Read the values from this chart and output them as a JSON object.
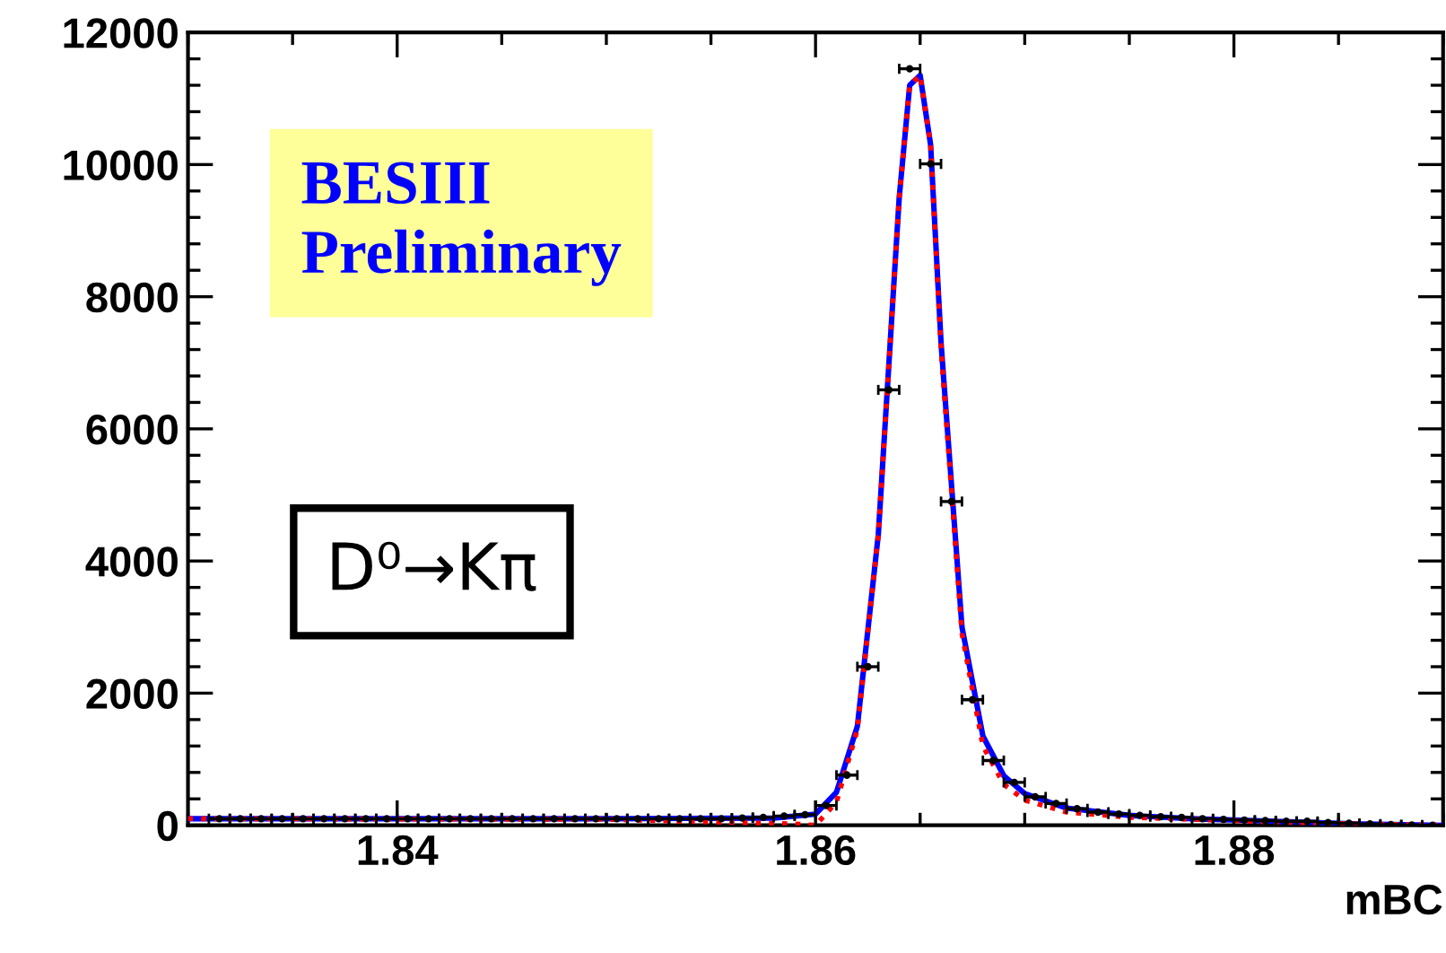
{
  "chart_data": {
    "type": "scatter",
    "xlabel": "mBC",
    "xlim": [
      1.83,
      1.89
    ],
    "xticks": [
      1.84,
      1.86,
      1.88
    ],
    "ylim": [
      0,
      12000
    ],
    "yticks": [
      0,
      2000,
      4000,
      6000,
      8000,
      10000,
      12000
    ],
    "grid": false,
    "annotations": [
      "BESIII\nPreliminary",
      "D⁰→Kπ"
    ],
    "series": [
      {
        "color": "#000000",
        "marker": "circle",
        "x": [
          1.8315,
          1.8325,
          1.8335,
          1.8345,
          1.8355,
          1.8365,
          1.8375,
          1.8385,
          1.8395,
          1.8405,
          1.8415,
          1.8425,
          1.8435,
          1.8445,
          1.8455,
          1.8465,
          1.8475,
          1.8485,
          1.8495,
          1.8505,
          1.8515,
          1.8525,
          1.8535,
          1.8545,
          1.8555,
          1.8565,
          1.8575,
          1.8585,
          1.8595,
          1.8605,
          1.8615,
          1.8625,
          1.8635,
          1.8645,
          1.8655,
          1.8665,
          1.8675,
          1.8685,
          1.8695,
          1.8705,
          1.8715,
          1.8725,
          1.8735,
          1.8745,
          1.8755,
          1.8765,
          1.8775,
          1.8785,
          1.8795,
          1.8805,
          1.8815,
          1.8825,
          1.8835,
          1.8845,
          1.8855,
          1.8865,
          1.8875,
          1.8885,
          1.8895
        ],
        "values": [
          100,
          100,
          100,
          100,
          100,
          100,
          100,
          100,
          100,
          100,
          100,
          100,
          100,
          100,
          100,
          100,
          100,
          100,
          100,
          100,
          100,
          100,
          100,
          100,
          100,
          110,
          120,
          140,
          160,
          300,
          760,
          2400,
          6590,
          11450,
          10010,
          4900,
          1900,
          980,
          650,
          430,
          330,
          250,
          200,
          170,
          150,
          130,
          120,
          100,
          90,
          80,
          70,
          60,
          60,
          40,
          30,
          20,
          10,
          5,
          0
        ],
        "xerrors": [
          0.0005,
          0.0005,
          0.0005,
          0.0005,
          0.0005,
          0.0005,
          0.0005,
          0.0005,
          0.0005,
          0.0005,
          0.0005,
          0.0005,
          0.0005,
          0.0005,
          0.0005,
          0.0005,
          0.0005,
          0.0005,
          0.0005,
          0.0005,
          0.0005,
          0.0005,
          0.0005,
          0.0005,
          0.0005,
          0.0005,
          0.0005,
          0.0005,
          0.0005,
          0.0005,
          0.0005,
          0.0005,
          0.0005,
          0.0005,
          0.0005,
          0.0005,
          0.0005,
          0.0005,
          0.0005,
          0.0005,
          0.0005,
          0.0005,
          0.0005,
          0.0005,
          0.0005,
          0.0005,
          0.0005,
          0.0005,
          0.0005,
          0.0005,
          0.0005,
          0.0005,
          0.0005,
          0.0005,
          0.0005,
          0.0005,
          0.0005,
          0.0005,
          0.0005
        ]
      },
      {
        "type": "line",
        "color": "#0000ff",
        "line_style": "solid",
        "x": [
          1.83,
          1.85,
          1.858,
          1.86,
          1.861,
          1.862,
          1.863,
          1.864,
          1.8645,
          1.865,
          1.8655,
          1.866,
          1.867,
          1.868,
          1.869,
          1.87,
          1.872,
          1.875,
          1.878,
          1.882,
          1.886,
          1.89
        ],
        "values": [
          100,
          100,
          110,
          170,
          500,
          1500,
          4400,
          9500,
          11200,
          11350,
          10300,
          7300,
          3000,
          1350,
          750,
          480,
          260,
          150,
          100,
          60,
          20,
          0
        ]
      },
      {
        "type": "line",
        "color": "#ff0000",
        "line_style": "dotted",
        "x": [
          1.83,
          1.85,
          1.859,
          1.86,
          1.861,
          1.862,
          1.863,
          1.864,
          1.8645,
          1.865,
          1.8655,
          1.866,
          1.867,
          1.868,
          1.869,
          1.87,
          1.872,
          1.875,
          1.878,
          1.882,
          1.886,
          1.89
        ],
        "values": [
          100,
          90,
          20,
          0,
          350,
          1450,
          4400,
          9500,
          11200,
          11350,
          10300,
          7200,
          2900,
          1200,
          620,
          380,
          200,
          120,
          90,
          50,
          20,
          0
        ]
      }
    ]
  }
}
